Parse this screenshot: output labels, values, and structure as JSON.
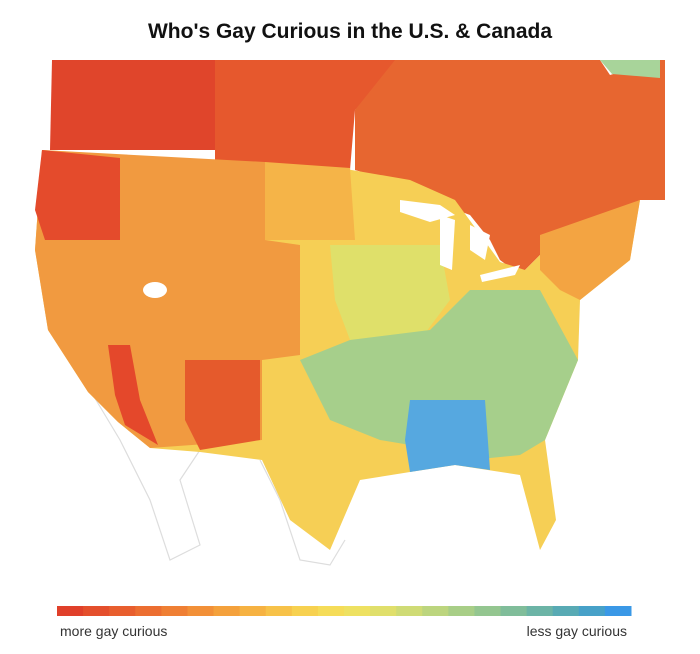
{
  "title": "Who's Gay Curious in the U.S. & Canada",
  "legend": {
    "low_label": "more gay curious",
    "high_label": "less gay curious",
    "colors": [
      "#e0402a",
      "#e44f2c",
      "#e85e2e",
      "#ec6e31",
      "#ef7f34",
      "#f29038",
      "#f4a13c",
      "#f6b242",
      "#f7c249",
      "#f7d150",
      "#f5dc58",
      "#eee161",
      "#e0df6b",
      "#cfdb75",
      "#bcd57e",
      "#a8ce87",
      "#94c690",
      "#80bd9a",
      "#6cb4a6",
      "#58aab4",
      "#47a1c8",
      "#3a98e6"
    ]
  }
}
